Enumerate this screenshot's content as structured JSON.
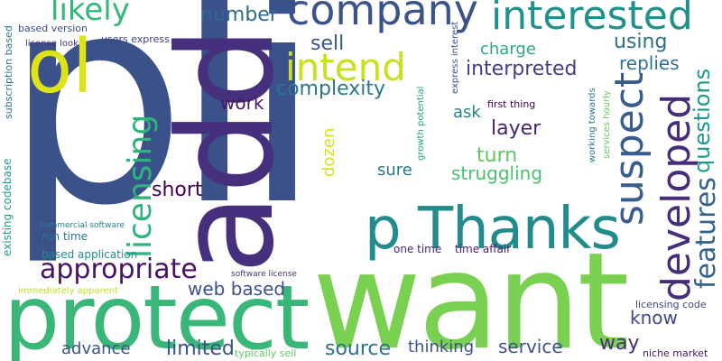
{
  "words": [
    {
      "text": "pli",
      "color": "#3b518a"
    },
    {
      "text": "want",
      "color": "#7ad151"
    },
    {
      "text": "add",
      "color": "#46307e"
    },
    {
      "text": "protect",
      "color": "#3ab679"
    },
    {
      "text": "p Thanks",
      "color": "#228c8d"
    },
    {
      "text": "company",
      "color": "#3b528b"
    },
    {
      "text": "interested",
      "color": "#21918c"
    },
    {
      "text": "ol",
      "color": "#dde318"
    },
    {
      "text": "intend",
      "color": "#c8e020"
    },
    {
      "text": "likely",
      "color": "#35b779"
    },
    {
      "text": "number",
      "color": "#31688e"
    },
    {
      "text": "licensing",
      "color": "#2eb37c"
    },
    {
      "text": "suspect",
      "color": "#365d8d"
    },
    {
      "text": "developed",
      "color": "#472c7a"
    },
    {
      "text": "features",
      "color": "#33638d"
    },
    {
      "text": "questions",
      "color": "#1f998a"
    },
    {
      "text": "appropriate",
      "color": "#471365"
    },
    {
      "text": "using",
      "color": "#2d708e"
    },
    {
      "text": "sell",
      "color": "#3a548c"
    },
    {
      "text": "interpreted",
      "color": "#433e85"
    },
    {
      "text": "replies",
      "color": "#2c728e"
    },
    {
      "text": "complexity",
      "color": "#2a788e"
    },
    {
      "text": "work",
      "color": "#481769"
    },
    {
      "text": "layer",
      "color": "#482374"
    },
    {
      "text": "turn",
      "color": "#5ec962"
    },
    {
      "text": "struggling",
      "color": "#4ac16d"
    },
    {
      "text": "charge",
      "color": "#27ad81"
    },
    {
      "text": "ask",
      "color": "#26828e"
    },
    {
      "text": "short",
      "color": "#440154"
    },
    {
      "text": "dozen",
      "color": "#d8e219"
    },
    {
      "text": "sure",
      "color": "#2a788e"
    },
    {
      "text": "web based",
      "color": "#3b528b"
    },
    {
      "text": "know",
      "color": "#3e4a89"
    },
    {
      "text": "way",
      "color": "#472d7b"
    },
    {
      "text": "limited",
      "color": "#3b518b"
    },
    {
      "text": "advance",
      "color": "#3a548c"
    },
    {
      "text": "source",
      "color": "#2c728e"
    },
    {
      "text": "thinking",
      "color": "#3b528b"
    },
    {
      "text": "service",
      "color": "#3b528b"
    },
    {
      "text": "run time",
      "color": "#2a788e"
    },
    {
      "text": "based application",
      "color": "#228d8d"
    },
    {
      "text": "one time",
      "color": "#482576"
    },
    {
      "text": "time affair",
      "color": "#481a6c"
    },
    {
      "text": "existing codebase",
      "color": "#1f9e89"
    },
    {
      "text": "subscription based",
      "color": "#2a788e"
    },
    {
      "text": "based version",
      "color": "#3e4a89"
    },
    {
      "text": "license look",
      "color": "#46337f"
    },
    {
      "text": "users express",
      "color": "#414487"
    },
    {
      "text": "express interest",
      "color": "#3b528b"
    },
    {
      "text": "first thing",
      "color": "#440154"
    },
    {
      "text": "growth potential",
      "color": "#20a486"
    },
    {
      "text": "working towards",
      "color": "#2a788e"
    },
    {
      "text": "services hourly",
      "color": "#65cb5e"
    },
    {
      "text": "commercial software",
      "color": "#26828e"
    },
    {
      "text": "immediately apparent",
      "color": "#c0df25"
    },
    {
      "text": "software license",
      "color": "#46337f"
    },
    {
      "text": "typically sell",
      "color": "#5ec962"
    },
    {
      "text": "licensing code",
      "color": "#404688"
    },
    {
      "text": "niche market",
      "color": "#48186a"
    }
  ]
}
